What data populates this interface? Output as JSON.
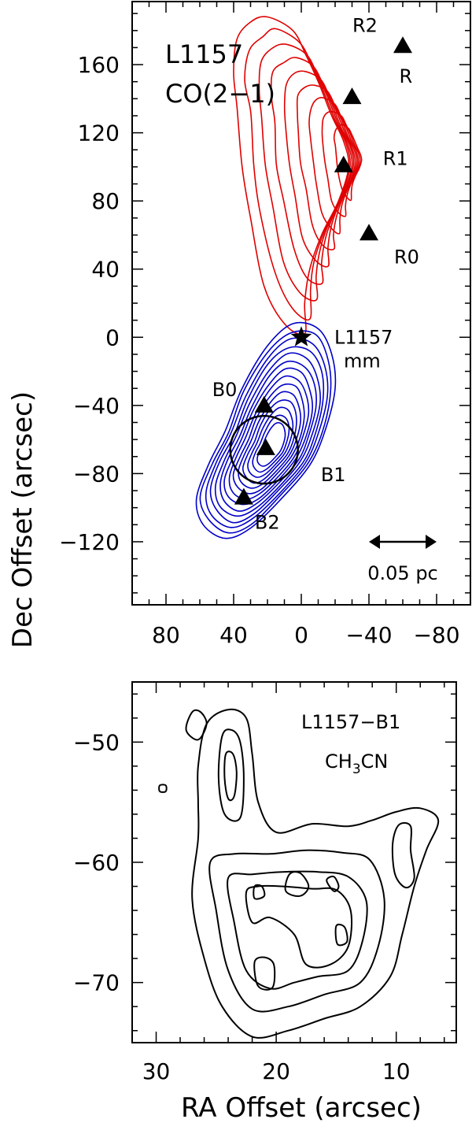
{
  "axis_titles": {
    "y": "Dec Offset (arcsec)",
    "x": "RA Offset (arcsec)"
  },
  "colors": {
    "redshifted_lobe": "#e00000",
    "blueshifted_lobe": "#0000c8",
    "ch3cn_contours": "#000000",
    "axes": "#000000"
  },
  "chart_data": [
    {
      "type": "contour",
      "panel": "top",
      "source_label": "L1157",
      "line_label": "CO(2−1)",
      "xlabel": "",
      "ylabel": "Dec Offset (arcsec)",
      "xlim": [
        100,
        -100
      ],
      "ylim": [
        -157,
        197
      ],
      "x_ticks": [
        80,
        40,
        0,
        -40,
        -80
      ],
      "x_tick_labels": [
        "80",
        "40",
        "0",
        "−40",
        "−80"
      ],
      "y_ticks": [
        -120,
        -80,
        -40,
        0,
        40,
        80,
        120,
        160
      ],
      "y_tick_labels": [
        "−120",
        "−80",
        "−40",
        "0",
        "40",
        "80",
        "120",
        "160"
      ],
      "series": [
        {
          "name": "red lobe",
          "color": "#e00000",
          "ring": [
            [
              -2,
              2
            ],
            [
              10,
              8
            ],
            [
              22,
              30
            ],
            [
              30,
              70
            ],
            [
              35,
              100
            ],
            [
              38,
              135
            ],
            [
              40,
              155
            ],
            [
              38,
              175
            ],
            [
              30,
              185
            ],
            [
              20,
              188
            ],
            [
              5,
              180
            ],
            [
              -3,
              165
            ],
            [
              -10,
              150
            ],
            [
              -18,
              130
            ],
            [
              -25,
              115
            ],
            [
              -28,
              100
            ],
            [
              -22,
              80
            ],
            [
              -12,
              60
            ],
            [
              -5,
              40
            ],
            [
              -2,
              20
            ]
          ],
          "center": [
            -38,
            105
          ],
          "levels": 9
        },
        {
          "name": "blue lobe",
          "color": "#0000c8",
          "ring": [
            [
              -10,
              5
            ],
            [
              -18,
              -10
            ],
            [
              -20,
              -30
            ],
            [
              -14,
              -55
            ],
            [
              -5,
              -75
            ],
            [
              12,
              -95
            ],
            [
              30,
              -112
            ],
            [
              45,
              -118
            ],
            [
              58,
              -110
            ],
            [
              62,
              -95
            ],
            [
              55,
              -75
            ],
            [
              45,
              -55
            ],
            [
              35,
              -30
            ],
            [
              20,
              -5
            ],
            [
              5,
              8
            ]
          ],
          "center": [
            17,
            -65
          ],
          "levels": 14
        }
      ],
      "markers": [
        {
          "label": "R2",
          "x": -60,
          "y": 171,
          "shape": "triangle"
        },
        {
          "label": "R",
          "x": -30,
          "y": 141,
          "shape": "triangle"
        },
        {
          "label": "R1",
          "x": -25,
          "y": 101,
          "shape": "triangle"
        },
        {
          "label": "R0",
          "x": -40,
          "y": 61,
          "shape": "triangle"
        },
        {
          "label": "B0",
          "x": 22,
          "y": -40,
          "shape": "triangle"
        },
        {
          "label": "B1",
          "x": 21,
          "y": -65,
          "shape": "triangle"
        },
        {
          "label": "B2",
          "x": 34,
          "y": -94,
          "shape": "triangle"
        },
        {
          "label": "L1157",
          "sublabel": "mm",
          "x": 0,
          "y": 0,
          "shape": "star"
        }
      ],
      "circle": {
        "x": 22,
        "y": -66,
        "radius_arcsec": 20
      },
      "scale_bar": {
        "label": "0.05 pc",
        "x_from": -40,
        "x_to": -80,
        "y": -120
      }
    },
    {
      "type": "contour",
      "panel": "bottom",
      "source_label": "L1157−B1",
      "line_label": "CH3CN",
      "xlabel": "RA Offset (arcsec)",
      "ylabel": "Dec Offset (arcsec)",
      "xlim": [
        32,
        5
      ],
      "ylim": [
        -75,
        -45
      ],
      "x_ticks": [
        30,
        20,
        10
      ],
      "x_tick_labels": [
        "30",
        "20",
        "10"
      ],
      "y_ticks": [
        -70,
        -60,
        -50
      ],
      "y_tick_labels": [
        "−70",
        "−60",
        "−50"
      ],
      "contours": [
        {
          "ring": [
            [
              26.5,
              -58
            ],
            [
              27,
              -63
            ],
            [
              26,
              -68
            ],
            [
              24.5,
              -72
            ],
            [
              22,
              -74.5
            ],
            [
              19,
              -74
            ],
            [
              16,
              -73
            ],
            [
              13,
              -72
            ],
            [
              10.5,
              -69.5
            ],
            [
              9.5,
              -66
            ],
            [
              8.5,
              -62
            ],
            [
              7.5,
              -59
            ],
            [
              6.5,
              -56.5
            ],
            [
              8,
              -55.5
            ],
            [
              10,
              -55.8
            ],
            [
              12,
              -56.5
            ],
            [
              14,
              -57
            ],
            [
              17,
              -56.8
            ],
            [
              20,
              -57.5
            ],
            [
              21.5,
              -55
            ],
            [
              22,
              -51
            ],
            [
              22.5,
              -48
            ],
            [
              24,
              -47.3
            ],
            [
              25.8,
              -48.5
            ],
            [
              26.5,
              -52
            ],
            [
              26.5,
              -55
            ]
          ]
        },
        {
          "ring": [
            [
              25.5,
              -60
            ],
            [
              25,
              -64
            ],
            [
              24,
              -69
            ],
            [
              22,
              -72.2
            ],
            [
              19,
              -72
            ],
            [
              16,
              -71
            ],
            [
              13,
              -70
            ],
            [
              11.5,
              -67
            ],
            [
              11,
              -63
            ],
            [
              12.2,
              -59.8
            ],
            [
              14.5,
              -59.2
            ],
            [
              17.5,
              -59
            ],
            [
              20.5,
              -59.3
            ],
            [
              23.5,
              -59.3
            ]
          ]
        },
        {
          "ring": [
            [
              24,
              -61.3
            ],
            [
              23.5,
              -65
            ],
            [
              22.5,
              -69
            ],
            [
              20.5,
              -70.5
            ],
            [
              18.5,
              -70
            ],
            [
              16.5,
              -69.5
            ],
            [
              14,
              -69
            ],
            [
              12.8,
              -66.5
            ],
            [
              12.5,
              -63.2
            ],
            [
              14,
              -61.2
            ],
            [
              16.5,
              -60.8
            ],
            [
              19.5,
              -60.8
            ],
            [
              22,
              -61
            ]
          ]
        },
        {
          "ring": [
            [
              22.5,
              -62.5
            ],
            [
              22,
              -65
            ],
            [
              20.5,
              -64.6
            ],
            [
              18.5,
              -66
            ],
            [
              17.5,
              -68.5
            ],
            [
              15.5,
              -68.5
            ],
            [
              14,
              -67
            ],
            [
              13.8,
              -64
            ],
            [
              15,
              -62.3
            ],
            [
              17,
              -62.2
            ],
            [
              19.5,
              -62
            ],
            [
              21.5,
              -62
            ]
          ]
        },
        {
          "ring": [
            [
              24.5,
              -49.5
            ],
            [
              24.8,
              -53
            ],
            [
              24.3,
              -56
            ],
            [
              23,
              -56.3
            ],
            [
              22.7,
              -53
            ],
            [
              23,
              -50
            ],
            [
              23.7,
              -49
            ]
          ]
        },
        {
          "ring": [
            [
              24.2,
              -51
            ],
            [
              24.3,
              -53
            ],
            [
              24,
              -54.7
            ],
            [
              23.5,
              -54.5
            ],
            [
              23.3,
              -52.5
            ],
            [
              23.6,
              -51
            ]
          ]
        },
        {
          "ring": [
            [
              8.8,
              -57
            ],
            [
              8.8,
              -59
            ],
            [
              8.5,
              -61.3
            ],
            [
              9.2,
              -62.1
            ],
            [
              10.1,
              -61
            ],
            [
              10.3,
              -58.5
            ],
            [
              9.8,
              -56.9
            ]
          ]
        },
        {
          "ring": [
            [
              21.8,
              -68.3
            ],
            [
              21.5,
              -70.3
            ],
            [
              20.3,
              -70.4
            ],
            [
              20.2,
              -68.5
            ],
            [
              21,
              -67.9
            ]
          ]
        },
        {
          "ring": [
            [
              18.9,
              -61
            ],
            [
              19.2,
              -62.4
            ],
            [
              18,
              -62.8
            ],
            [
              17.3,
              -62
            ],
            [
              18,
              -60.9
            ]
          ]
        },
        {
          "ring": [
            [
              21.8,
              -62
            ],
            [
              21.8,
              -63
            ],
            [
              21,
              -62.8
            ],
            [
              21.2,
              -62
            ]
          ]
        },
        {
          "ring": [
            [
              15.8,
              -61.5
            ],
            [
              15.2,
              -62.4
            ],
            [
              14.8,
              -62
            ],
            [
              15.2,
              -61.2
            ]
          ]
        },
        {
          "ring": [
            [
              15,
              -65.3
            ],
            [
              14.9,
              -66.8
            ],
            [
              14.1,
              -66.6
            ],
            [
              14.3,
              -65.4
            ]
          ]
        },
        {
          "ring": [
            [
              27,
              -47.5
            ],
            [
              27.5,
              -49
            ],
            [
              26.5,
              -49.8
            ],
            [
              25.8,
              -48.5
            ],
            [
              26.3,
              -47.5
            ]
          ]
        },
        {
          "ring": [
            [
              29.7,
              -53.6
            ],
            [
              29.7,
              -54.1
            ],
            [
              29.2,
              -54.1
            ],
            [
              29.2,
              -53.6
            ]
          ]
        }
      ]
    }
  ]
}
